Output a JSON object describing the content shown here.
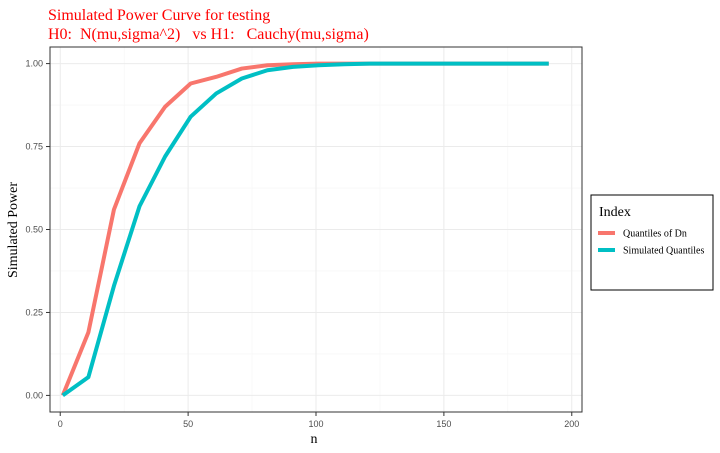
{
  "chart_data": {
    "type": "line",
    "title": "Simulated Power Curve for testing",
    "subtitle": "H0:  N(mu,sigma^2)   vs H1:   Cauchy(mu,sigma)",
    "xlabel": "n",
    "ylabel": "Simulated Power",
    "xlim": [
      -4,
      204
    ],
    "ylim": [
      -0.05,
      1.05
    ],
    "x_ticks": [
      0,
      50,
      100,
      150,
      200
    ],
    "x_tick_labels": [
      "0",
      "50",
      "100",
      "150",
      "200"
    ],
    "y_ticks": [
      0,
      0.25,
      0.5,
      0.75,
      1.0
    ],
    "y_tick_labels": [
      "0.00",
      "0.25",
      "0.50",
      "0.75",
      "1.00"
    ],
    "grid": true,
    "legend": {
      "title": "Index",
      "placement": "right"
    },
    "x": [
      1,
      11,
      21,
      31,
      41,
      51,
      61,
      71,
      81,
      91,
      101,
      111,
      121,
      131,
      141,
      151,
      161,
      171,
      181,
      191
    ],
    "series": [
      {
        "name": "Quantiles of Dn",
        "color": "#F8766D",
        "values": [
          0.0,
          0.19,
          0.56,
          0.76,
          0.87,
          0.94,
          0.96,
          0.985,
          0.995,
          0.998,
          1.0,
          1.0,
          1.0,
          1.0,
          1.0,
          1.0,
          1.0,
          1.0,
          1.0,
          1.0
        ]
      },
      {
        "name": "Simulated Quantiles",
        "color": "#00BFC4",
        "values": [
          0.0,
          0.055,
          0.33,
          0.57,
          0.72,
          0.84,
          0.91,
          0.955,
          0.98,
          0.99,
          0.995,
          0.998,
          1.0,
          1.0,
          1.0,
          1.0,
          1.0,
          1.0,
          1.0,
          1.0
        ]
      }
    ]
  },
  "colors": {
    "panel_border": "#333333",
    "grid_major": "#ebebeb",
    "grid_minor": "#f5f5f5",
    "title": "#ff0000"
  }
}
